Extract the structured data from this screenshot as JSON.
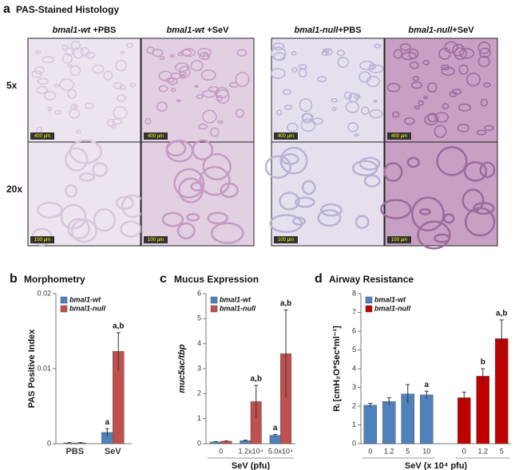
{
  "panel_a": {
    "label": "a",
    "title": "PAS-Stained Histology",
    "columns": [
      {
        "gene": "bmal1-wt",
        "condition": "+PBS"
      },
      {
        "gene": "bmal1-wt",
        "condition": "+SeV"
      },
      {
        "gene": "bmal1-null",
        "condition": "+PBS"
      },
      {
        "gene": "bmal1-null",
        "condition": "+SeV"
      }
    ],
    "rows": [
      {
        "label": "5x",
        "scale": "400 µm"
      },
      {
        "label": "20x",
        "scale": "100 µm"
      }
    ]
  },
  "chart_data": [
    {
      "type": "bar",
      "panel_label": "b",
      "title": "Morphometry",
      "y_label": "PAS Positive Index",
      "categories": [
        "PBS",
        "SeV"
      ],
      "ylim": [
        0,
        0.02
      ],
      "yticks": [
        0,
        0.01,
        0.02
      ],
      "legend": "upper left",
      "series": [
        {
          "name": "bmal1-wt",
          "color": "#4f81bd",
          "values": [
            0.0001,
            0.0015
          ],
          "errors": [
            5e-05,
            0.0005
          ],
          "annotations": [
            null,
            "a"
          ]
        },
        {
          "name": "bmal1-null",
          "color": "#c0504d",
          "values": [
            0.0001,
            0.0123
          ],
          "errors": [
            5e-05,
            0.0025
          ],
          "annotations": [
            null,
            "a,b"
          ]
        }
      ]
    },
    {
      "type": "bar",
      "panel_label": "c",
      "title": "Mucus Expression",
      "y_label": "muc5ac/tbp",
      "x_label": "SeV (pfu)",
      "categories": [
        "0",
        "1.2x10⁴",
        "5.0x10⁴"
      ],
      "ylim": [
        0,
        6
      ],
      "yticks": [
        0,
        1,
        2,
        3,
        4,
        5,
        6
      ],
      "legend": "upper left",
      "series": [
        {
          "name": "bmal1-wt",
          "color": "#4f81bd",
          "values": [
            0.07,
            0.12,
            0.33
          ],
          "errors": [
            0.01,
            0.02,
            0.04
          ],
          "annotations": [
            null,
            null,
            "a"
          ]
        },
        {
          "name": "bmal1-null",
          "color": "#c0504d",
          "values": [
            0.1,
            1.68,
            3.6
          ],
          "errors": [
            0.01,
            0.65,
            1.75
          ],
          "annotations": [
            null,
            "a,b",
            "a,b"
          ]
        }
      ]
    },
    {
      "type": "bar",
      "panel_label": "d",
      "title": "Airway Resistance",
      "y_label": "Rᵢ [cmH₂O*Sec*ml⁻¹]",
      "x_label": "SeV (x 10⁴ pfu)",
      "categories": [
        "0",
        "1.2",
        "5",
        "10",
        "0",
        "1.2",
        "5"
      ],
      "ylim": [
        0,
        8
      ],
      "yticks": [
        0,
        1,
        2,
        3,
        4,
        5,
        6,
        7,
        8
      ],
      "legend": "upper left",
      "series": [
        {
          "name": "bmal1-wt",
          "color": "#4f81bd",
          "values": [
            2.05,
            2.25,
            2.65,
            2.6,
            null,
            null,
            null
          ],
          "errors": [
            0.1,
            0.2,
            0.5,
            0.2,
            null,
            null,
            null
          ],
          "annotations": [
            null,
            null,
            null,
            "a",
            null,
            null,
            null
          ]
        },
        {
          "name": "bmal1-null",
          "color": "#c00000",
          "values": [
            null,
            null,
            null,
            null,
            2.45,
            3.6,
            5.6
          ],
          "errors": [
            null,
            null,
            null,
            null,
            0.3,
            0.4,
            1.0
          ],
          "annotations": [
            null,
            null,
            null,
            null,
            null,
            "b",
            "a,b"
          ]
        }
      ]
    }
  ]
}
